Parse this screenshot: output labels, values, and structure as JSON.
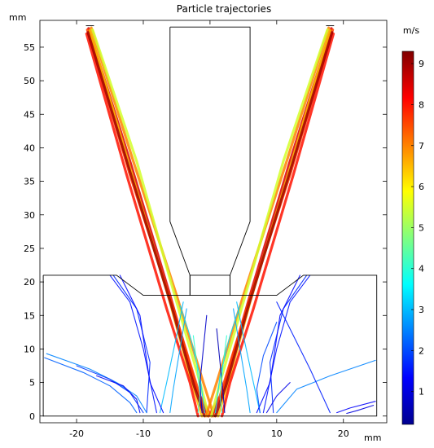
{
  "chart_data": {
    "type": "line",
    "title": "Particle trajectories",
    "x_unit_label": "mm",
    "y_unit_label": "mm",
    "xlim": [
      -25.5,
      26.5
    ],
    "ylim": [
      -1,
      59
    ],
    "x_ticks": [
      -20,
      -10,
      0,
      10,
      20
    ],
    "y_ticks": [
      0,
      5,
      10,
      15,
      20,
      25,
      30,
      35,
      40,
      45,
      50,
      55
    ],
    "colorbar": {
      "unit": "m/s",
      "range": [
        0.2,
        9.3
      ],
      "ticks": [
        1,
        2,
        3,
        4,
        5,
        6,
        7,
        8,
        9
      ],
      "colormap": [
        "#00008f",
        "#0000ff",
        "#0080ff",
        "#00ffff",
        "#80ff80",
        "#ffff00",
        "#ff8000",
        "#ff0000",
        "#800000"
      ]
    },
    "geometry": {
      "nozzle": [
        [
          -6,
          58
        ],
        [
          6,
          58
        ],
        [
          6,
          29
        ],
        [
          3,
          21
        ],
        [
          3,
          18
        ],
        [
          -3,
          18
        ],
        [
          -3,
          21
        ],
        [
          -6,
          29
        ],
        [
          -6,
          58
        ]
      ],
      "chamber": [
        [
          -25,
          21
        ],
        [
          -14,
          21
        ],
        [
          -10,
          18
        ],
        [
          -3,
          18
        ],
        [
          -3,
          21
        ],
        [
          3,
          21
        ],
        [
          3,
          18
        ],
        [
          10,
          18
        ],
        [
          14,
          21
        ],
        [
          25,
          21
        ],
        [
          25,
          0
        ],
        [
          -25,
          0
        ],
        [
          -25,
          21
        ]
      ],
      "left_inlet_top": [
        [
          -18.6,
          58.2
        ],
        [
          -17.4,
          58.2
        ]
      ],
      "right_inlet_top": [
        [
          17.4,
          58.2
        ],
        [
          18.6,
          58.2
        ]
      ]
    },
    "series": [
      {
        "points": [
          [
            -18.2,
            57.8
          ],
          [
            -12,
            38
          ],
          [
            -6,
            18
          ],
          [
            -2,
            4
          ],
          [
            -0.3,
            0
          ]
        ],
        "speed": 8.5
      },
      {
        "points": [
          [
            -18.4,
            57.6
          ],
          [
            -12,
            36
          ],
          [
            -5.5,
            16
          ],
          [
            -1.5,
            3
          ],
          [
            0.2,
            0
          ]
        ],
        "speed": 7.6
      },
      {
        "points": [
          [
            -17.8,
            57.9
          ],
          [
            -11.5,
            38
          ],
          [
            -5,
            18
          ],
          [
            -1,
            5
          ],
          [
            0.6,
            0
          ]
        ],
        "speed": 7.0
      },
      {
        "points": [
          [
            -18.0,
            57.5
          ],
          [
            -12,
            37
          ],
          [
            -6,
            17
          ],
          [
            -3,
            6
          ],
          [
            -1.2,
            0
          ]
        ],
        "speed": 6.5
      },
      {
        "points": [
          [
            -18.5,
            57.0
          ],
          [
            -12.5,
            36
          ],
          [
            -6.5,
            16
          ],
          [
            -3,
            5
          ],
          [
            -1.8,
            0
          ]
        ],
        "speed": 8.0
      },
      {
        "points": [
          [
            -17.6,
            57.6
          ],
          [
            -11,
            38
          ],
          [
            -5,
            17
          ],
          [
            -1.5,
            5
          ],
          [
            -0.2,
            0
          ]
        ],
        "speed": 5.5
      },
      {
        "points": [
          [
            -18.3,
            57.2
          ],
          [
            -12,
            36.5
          ],
          [
            -5.8,
            16.5
          ],
          [
            -2.4,
            4.5
          ],
          [
            -0.8,
            0
          ]
        ],
        "speed": 9.0
      },
      {
        "points": [
          [
            18.2,
            57.8
          ],
          [
            12,
            38
          ],
          [
            6,
            18
          ],
          [
            2,
            4
          ],
          [
            0.3,
            0
          ]
        ],
        "speed": 8.5
      },
      {
        "points": [
          [
            18.4,
            57.6
          ],
          [
            12,
            36
          ],
          [
            5.5,
            16
          ],
          [
            1.5,
            3
          ],
          [
            -0.2,
            0
          ]
        ],
        "speed": 7.6
      },
      {
        "points": [
          [
            17.8,
            57.9
          ],
          [
            11.5,
            38
          ],
          [
            5,
            18
          ],
          [
            1,
            5
          ],
          [
            -0.6,
            0
          ]
        ],
        "speed": 7.0
      },
      {
        "points": [
          [
            18.0,
            57.5
          ],
          [
            12,
            37
          ],
          [
            6,
            17
          ],
          [
            3,
            6
          ],
          [
            1.2,
            0
          ]
        ],
        "speed": 6.5
      },
      {
        "points": [
          [
            18.5,
            57.0
          ],
          [
            12.5,
            36
          ],
          [
            6.5,
            16
          ],
          [
            3,
            5
          ],
          [
            1.8,
            0
          ]
        ],
        "speed": 8.0
      },
      {
        "points": [
          [
            17.6,
            57.6
          ],
          [
            11,
            38
          ],
          [
            5,
            17
          ],
          [
            1.5,
            5
          ],
          [
            0.2,
            0
          ]
        ],
        "speed": 5.5
      },
      {
        "points": [
          [
            18.3,
            57.2
          ],
          [
            12,
            36.5
          ],
          [
            5.8,
            16.5
          ],
          [
            2.4,
            4.5
          ],
          [
            0.8,
            0
          ]
        ],
        "speed": 9.0
      },
      {
        "points": [
          [
            -4,
            17
          ],
          [
            -5,
            12
          ],
          [
            -6.5,
            5
          ],
          [
            -7.5,
            0.5
          ]
        ],
        "speed": 3.0
      },
      {
        "points": [
          [
            -3.5,
            16
          ],
          [
            -4.5,
            10
          ],
          [
            -5.5,
            4
          ],
          [
            -6,
            0.5
          ]
        ],
        "speed": 2.8
      },
      {
        "points": [
          [
            -4.5,
            16.5
          ],
          [
            -3,
            12
          ],
          [
            -1.5,
            6
          ],
          [
            -0.8,
            0.5
          ]
        ],
        "speed": 3.3
      },
      {
        "points": [
          [
            4,
            17
          ],
          [
            5,
            12
          ],
          [
            6.5,
            5
          ],
          [
            7.5,
            0.5
          ]
        ],
        "speed": 3.0
      },
      {
        "points": [
          [
            3.5,
            16
          ],
          [
            4.5,
            10
          ],
          [
            5.5,
            4
          ],
          [
            6,
            0.5
          ]
        ],
        "speed": 2.8
      },
      {
        "points": [
          [
            4.5,
            16.5
          ],
          [
            3,
            12
          ],
          [
            1.5,
            6
          ],
          [
            0.8,
            0.5
          ]
        ],
        "speed": 3.3
      },
      {
        "points": [
          [
            -15,
            21
          ],
          [
            -12,
            17
          ],
          [
            -10,
            10
          ],
          [
            -8,
            0.5
          ]
        ],
        "speed": 1.5
      },
      {
        "points": [
          [
            -14.5,
            21
          ],
          [
            -11,
            16
          ],
          [
            -9,
            8
          ],
          [
            -9.5,
            0.5
          ]
        ],
        "speed": 1.7
      },
      {
        "points": [
          [
            -13.5,
            21
          ],
          [
            -10.5,
            15
          ],
          [
            -9,
            5
          ],
          [
            -7,
            0.5
          ]
        ],
        "speed": 1.4
      },
      {
        "points": [
          [
            15,
            21
          ],
          [
            12,
            17
          ],
          [
            10,
            10
          ],
          [
            8,
            0.5
          ]
        ],
        "speed": 1.5
      },
      {
        "points": [
          [
            14.5,
            21
          ],
          [
            11,
            16
          ],
          [
            9,
            8
          ],
          [
            9.5,
            0.5
          ]
        ],
        "speed": 1.7
      },
      {
        "points": [
          [
            13.5,
            21
          ],
          [
            10.5,
            15
          ],
          [
            9,
            5
          ],
          [
            7,
            0.5
          ]
        ],
        "speed": 1.4
      },
      {
        "points": [
          [
            -24.5,
            9.3
          ],
          [
            -18,
            7
          ],
          [
            -14,
            5
          ],
          [
            -11,
            3
          ],
          [
            -9.5,
            0.5
          ]
        ],
        "speed": 2.5
      },
      {
        "points": [
          [
            -24.8,
            8.7
          ],
          [
            -19,
            6.5
          ],
          [
            -15,
            4.5
          ],
          [
            -12,
            2
          ],
          [
            -11,
            0.5
          ]
        ],
        "speed": 2.2
      },
      {
        "points": [
          [
            -20,
            7.5
          ],
          [
            -15,
            5.5
          ],
          [
            -12,
            3.5
          ],
          [
            -10,
            0.5
          ]
        ],
        "speed": 1.8
      },
      {
        "points": [
          [
            -17,
            6
          ],
          [
            -13,
            4.5
          ],
          [
            -11,
            2.5
          ],
          [
            -10.5,
            0.5
          ]
        ],
        "speed": 1.2
      },
      {
        "points": [
          [
            24.8,
            8.3
          ],
          [
            18,
            6
          ],
          [
            13,
            4
          ],
          [
            10,
            0.5
          ]
        ],
        "speed": 2.5
      },
      {
        "points": [
          [
            24.8,
            2.2
          ],
          [
            21,
            1.2
          ],
          [
            19,
            0.5
          ]
        ],
        "speed": 1.3
      },
      {
        "points": [
          [
            24.5,
            1.6
          ],
          [
            22,
            0.8
          ],
          [
            20.5,
            0.4
          ]
        ],
        "speed": 1.0
      },
      {
        "points": [
          [
            12,
            5
          ],
          [
            10,
            3
          ],
          [
            8.5,
            0.5
          ]
        ],
        "speed": 1.1
      },
      {
        "points": [
          [
            10,
            14
          ],
          [
            8,
            9
          ],
          [
            7,
            4
          ],
          [
            7.5,
            0.5
          ]
        ],
        "speed": 2.0
      },
      {
        "points": [
          [
            10,
            17
          ],
          [
            12,
            13
          ],
          [
            15,
            7
          ],
          [
            18,
            0.5
          ]
        ],
        "speed": 1.6
      },
      {
        "points": [
          [
            -0.5,
            15
          ],
          [
            -1,
            10
          ],
          [
            -1.5,
            5
          ],
          [
            -1.2,
            0.5
          ]
        ],
        "speed": 0.8
      },
      {
        "points": [
          [
            1,
            13
          ],
          [
            1.5,
            8
          ],
          [
            2,
            3
          ],
          [
            2.2,
            0.5
          ]
        ],
        "speed": 0.6
      },
      {
        "points": [
          [
            -2.5,
            12
          ],
          [
            -2,
            8
          ],
          [
            -1.5,
            3
          ],
          [
            -1.8,
            0.5
          ]
        ],
        "speed": 4.0
      },
      {
        "points": [
          [
            2.5,
            12
          ],
          [
            2,
            8
          ],
          [
            1.5,
            3
          ],
          [
            1.8,
            0.5
          ]
        ],
        "speed": 4.0
      }
    ]
  }
}
